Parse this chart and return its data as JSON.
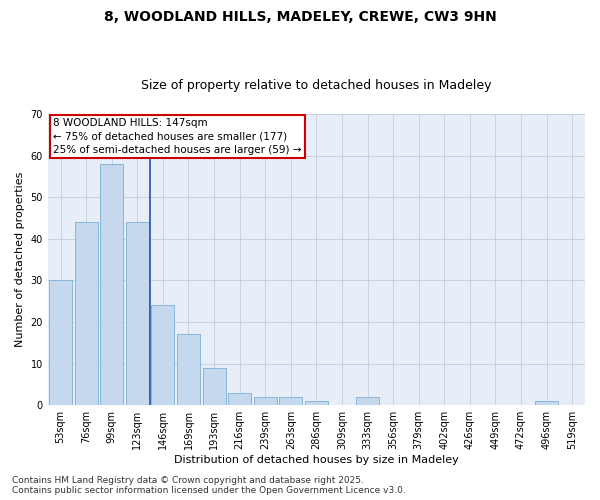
{
  "title1": "8, WOODLAND HILLS, MADELEY, CREWE, CW3 9HN",
  "title2": "Size of property relative to detached houses in Madeley",
  "xlabel": "Distribution of detached houses by size in Madeley",
  "ylabel": "Number of detached properties",
  "categories": [
    "53sqm",
    "76sqm",
    "99sqm",
    "123sqm",
    "146sqm",
    "169sqm",
    "193sqm",
    "216sqm",
    "239sqm",
    "263sqm",
    "286sqm",
    "309sqm",
    "333sqm",
    "356sqm",
    "379sqm",
    "402sqm",
    "426sqm",
    "449sqm",
    "472sqm",
    "496sqm",
    "519sqm"
  ],
  "values": [
    30,
    44,
    58,
    44,
    24,
    17,
    9,
    3,
    2,
    2,
    1,
    0,
    2,
    0,
    0,
    0,
    0,
    0,
    0,
    1,
    0
  ],
  "bar_color": "#c5d8ee",
  "bar_edge_color": "#7aafd4",
  "highlight_bar_index": 4,
  "ylim": [
    0,
    70
  ],
  "yticks": [
    0,
    10,
    20,
    30,
    40,
    50,
    60,
    70
  ],
  "annotation_box_text": "8 WOODLAND HILLS: 147sqm\n← 75% of detached houses are smaller (177)\n25% of semi-detached houses are larger (59) →",
  "box_facecolor": "#ffffff",
  "box_edgecolor": "#cc0000",
  "vline_color": "#2255aa",
  "background_color": "#e8eef8",
  "grid_color": "#c0ccdd",
  "footer_text": "Contains HM Land Registry data © Crown copyright and database right 2025.\nContains public sector information licensed under the Open Government Licence v3.0.",
  "title_fontsize": 10,
  "subtitle_fontsize": 9,
  "axis_label_fontsize": 8,
  "tick_fontsize": 7,
  "annotation_fontsize": 7.5,
  "footer_fontsize": 6.5
}
